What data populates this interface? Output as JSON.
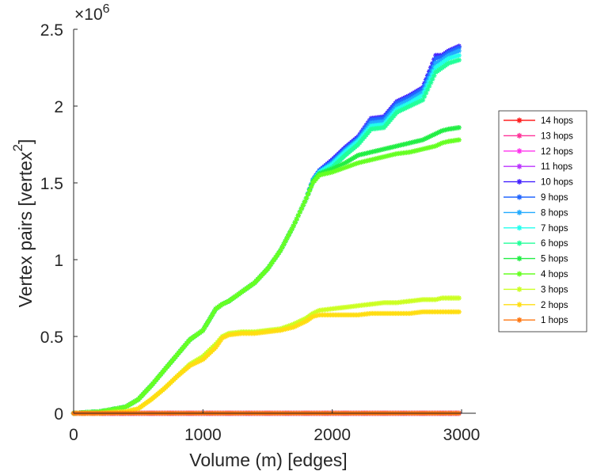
{
  "chart_data": {
    "type": "line",
    "title": "",
    "xlabel": "Volume (m) [edges]",
    "ylabel": "Vertex pairs [vertex",
    "ylabel_superscript": "2",
    "ylabel_close": "]",
    "y_exponent_label": "×10",
    "y_exponent_power": "6",
    "xlim": [
      0,
      3000
    ],
    "ylim": [
      0,
      2500000
    ],
    "xticks": [
      0,
      1000,
      2000,
      3000
    ],
    "xtick_labels": [
      "0",
      "1000",
      "2000",
      "3000"
    ],
    "yticks": [
      0,
      500000,
      1000000,
      1500000,
      2000000,
      2500000
    ],
    "ytick_labels": [
      "0",
      "0.5",
      "1",
      "1.5",
      "2",
      "2.5"
    ],
    "grid": false,
    "legend_position": "right",
    "x": [
      0,
      200,
      400,
      500,
      600,
      700,
      800,
      900,
      1000,
      1100,
      1150,
      1200,
      1300,
      1400,
      1500,
      1600,
      1700,
      1800,
      1850,
      1900,
      2000,
      2100,
      2200,
      2300,
      2400,
      2500,
      2600,
      2700,
      2800,
      2850,
      2900,
      2980
    ],
    "series": [
      {
        "name": "14 hops",
        "color": "#ff2020",
        "values": [
          0,
          0,
          0,
          0,
          0,
          0,
          0,
          0,
          0,
          0,
          0,
          0,
          0,
          0,
          0,
          0,
          0,
          0,
          0,
          0,
          0,
          0,
          0,
          0,
          0,
          0,
          0,
          0,
          0,
          0,
          0,
          0
        ]
      },
      {
        "name": "13 hops",
        "color": "#ff3399",
        "values": [
          0,
          0,
          0,
          0,
          0,
          0,
          0,
          0,
          0,
          0,
          0,
          0,
          0,
          0,
          0,
          0,
          0,
          0,
          0,
          0,
          0,
          0,
          0,
          0,
          0,
          0,
          0,
          0,
          0,
          0,
          0,
          0
        ]
      },
      {
        "name": "12 hops",
        "color": "#ff33ee",
        "values": [
          0,
          0,
          0,
          0,
          0,
          0,
          0,
          0,
          0,
          0,
          0,
          0,
          0,
          0,
          0,
          0,
          0,
          0,
          0,
          0,
          0,
          0,
          0,
          0,
          0,
          0,
          0,
          0,
          0,
          0,
          0,
          0
        ]
      },
      {
        "name": "11 hops",
        "color": "#bb33ff",
        "values": [
          0,
          0,
          0,
          0,
          0,
          0,
          0,
          0,
          0,
          0,
          0,
          0,
          0,
          0,
          0,
          0,
          0,
          0,
          0,
          0,
          0,
          0,
          0,
          0,
          0,
          0,
          0,
          0,
          0,
          0,
          0,
          0
        ]
      },
      {
        "name": "10 hops",
        "color": "#4422ff",
        "values": [
          0,
          10000,
          40000,
          90000,
          180000,
          280000,
          380000,
          480000,
          540000,
          680000,
          710000,
          730000,
          790000,
          850000,
          940000,
          1060000,
          1220000,
          1400000,
          1520000,
          1580000,
          1650000,
          1730000,
          1800000,
          1920000,
          1930000,
          2030000,
          2070000,
          2120000,
          2330000,
          2330000,
          2360000,
          2390000
        ]
      },
      {
        "name": "9 hops",
        "color": "#2266ff",
        "values": [
          0,
          10000,
          40000,
          90000,
          180000,
          280000,
          380000,
          480000,
          540000,
          680000,
          710000,
          730000,
          790000,
          850000,
          940000,
          1060000,
          1220000,
          1400000,
          1520000,
          1580000,
          1640000,
          1720000,
          1790000,
          1910000,
          1920000,
          2020000,
          2060000,
          2110000,
          2310000,
          2320000,
          2350000,
          2380000
        ]
      },
      {
        "name": "8 hops",
        "color": "#22aaff",
        "values": [
          0,
          10000,
          40000,
          90000,
          180000,
          280000,
          380000,
          480000,
          540000,
          680000,
          710000,
          730000,
          790000,
          850000,
          940000,
          1060000,
          1220000,
          1400000,
          1520000,
          1570000,
          1630000,
          1710000,
          1780000,
          1890000,
          1900000,
          2000000,
          2040000,
          2090000,
          2280000,
          2300000,
          2330000,
          2360000
        ]
      },
      {
        "name": "7 hops",
        "color": "#22ffee",
        "values": [
          0,
          10000,
          40000,
          90000,
          180000,
          280000,
          380000,
          480000,
          540000,
          680000,
          710000,
          730000,
          790000,
          850000,
          940000,
          1060000,
          1220000,
          1400000,
          1510000,
          1570000,
          1620000,
          1700000,
          1770000,
          1870000,
          1880000,
          1980000,
          2020000,
          2070000,
          2250000,
          2280000,
          2310000,
          2330000
        ]
      },
      {
        "name": "6 hops",
        "color": "#22ff99",
        "values": [
          0,
          10000,
          40000,
          90000,
          180000,
          280000,
          380000,
          480000,
          540000,
          680000,
          710000,
          730000,
          790000,
          850000,
          940000,
          1060000,
          1220000,
          1400000,
          1510000,
          1560000,
          1600000,
          1680000,
          1750000,
          1850000,
          1860000,
          1960000,
          2000000,
          2040000,
          2220000,
          2250000,
          2280000,
          2300000
        ]
      },
      {
        "name": "5 hops",
        "color": "#22ee44",
        "values": [
          0,
          10000,
          40000,
          90000,
          180000,
          280000,
          380000,
          480000,
          540000,
          680000,
          710000,
          730000,
          790000,
          850000,
          940000,
          1060000,
          1220000,
          1400000,
          1510000,
          1560000,
          1590000,
          1630000,
          1680000,
          1700000,
          1720000,
          1740000,
          1760000,
          1780000,
          1820000,
          1840000,
          1850000,
          1860000
        ]
      },
      {
        "name": "4 hops",
        "color": "#66ff22",
        "values": [
          0,
          10000,
          40000,
          90000,
          180000,
          280000,
          380000,
          480000,
          540000,
          680000,
          710000,
          730000,
          790000,
          850000,
          940000,
          1060000,
          1220000,
          1400000,
          1500000,
          1550000,
          1570000,
          1600000,
          1630000,
          1650000,
          1670000,
          1690000,
          1700000,
          1720000,
          1740000,
          1760000,
          1770000,
          1780000
        ]
      },
      {
        "name": "3 hops",
        "color": "#ccff22",
        "values": [
          0,
          0,
          10000,
          30000,
          90000,
          160000,
          240000,
          320000,
          370000,
          450000,
          500000,
          520000,
          530000,
          530000,
          540000,
          550000,
          580000,
          620000,
          650000,
          670000,
          680000,
          690000,
          700000,
          710000,
          720000,
          720000,
          730000,
          740000,
          740000,
          750000,
          750000,
          750000
        ]
      },
      {
        "name": "2 hops",
        "color": "#ffdd11",
        "values": [
          0,
          0,
          10000,
          30000,
          90000,
          160000,
          240000,
          310000,
          350000,
          430000,
          490000,
          510000,
          520000,
          520000,
          530000,
          540000,
          560000,
          600000,
          630000,
          640000,
          640000,
          640000,
          640000,
          650000,
          650000,
          650000,
          650000,
          660000,
          660000,
          660000,
          660000,
          660000
        ]
      },
      {
        "name": "1 hops",
        "color": "#ff7711",
        "values": [
          0,
          0,
          0,
          0,
          0,
          0,
          0,
          0,
          0,
          0,
          0,
          0,
          0,
          0,
          0,
          0,
          0,
          0,
          0,
          0,
          0,
          0,
          0,
          0,
          0,
          0,
          0,
          0,
          0,
          0,
          0,
          0
        ]
      }
    ]
  }
}
